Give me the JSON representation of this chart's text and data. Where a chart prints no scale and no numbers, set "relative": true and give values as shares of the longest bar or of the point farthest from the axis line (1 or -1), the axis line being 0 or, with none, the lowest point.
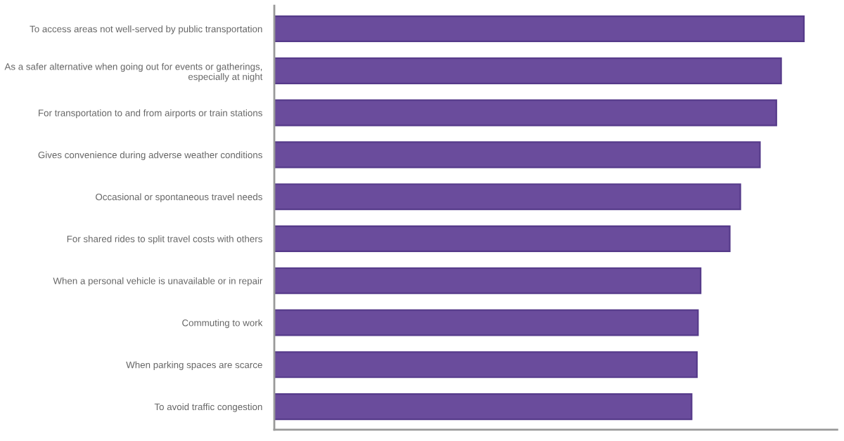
{
  "chart_data": {
    "type": "bar",
    "orientation": "horizontal",
    "relative": true,
    "categories": [
      "To access areas not well-served by public transportation",
      "As a safer alternative when going out for events or gatherings,\nespecially at night",
      "For transportation to and from airports or train stations",
      "Gives convenience during adverse weather conditions",
      "Occasional or spontaneous travel needs",
      "For shared rides to split travel costs with others",
      "When a personal vehicle is unavailable or in repair",
      "Commuting to work",
      "When parking spaces are scarce",
      "To avoid traffic congestion"
    ],
    "values": [
      1,
      0.957,
      0.948,
      0.917,
      0.88,
      0.86,
      0.805,
      0.8,
      0.798,
      0.788
    ],
    "color": "#6a4c9c",
    "grid": false,
    "legend": false
  }
}
